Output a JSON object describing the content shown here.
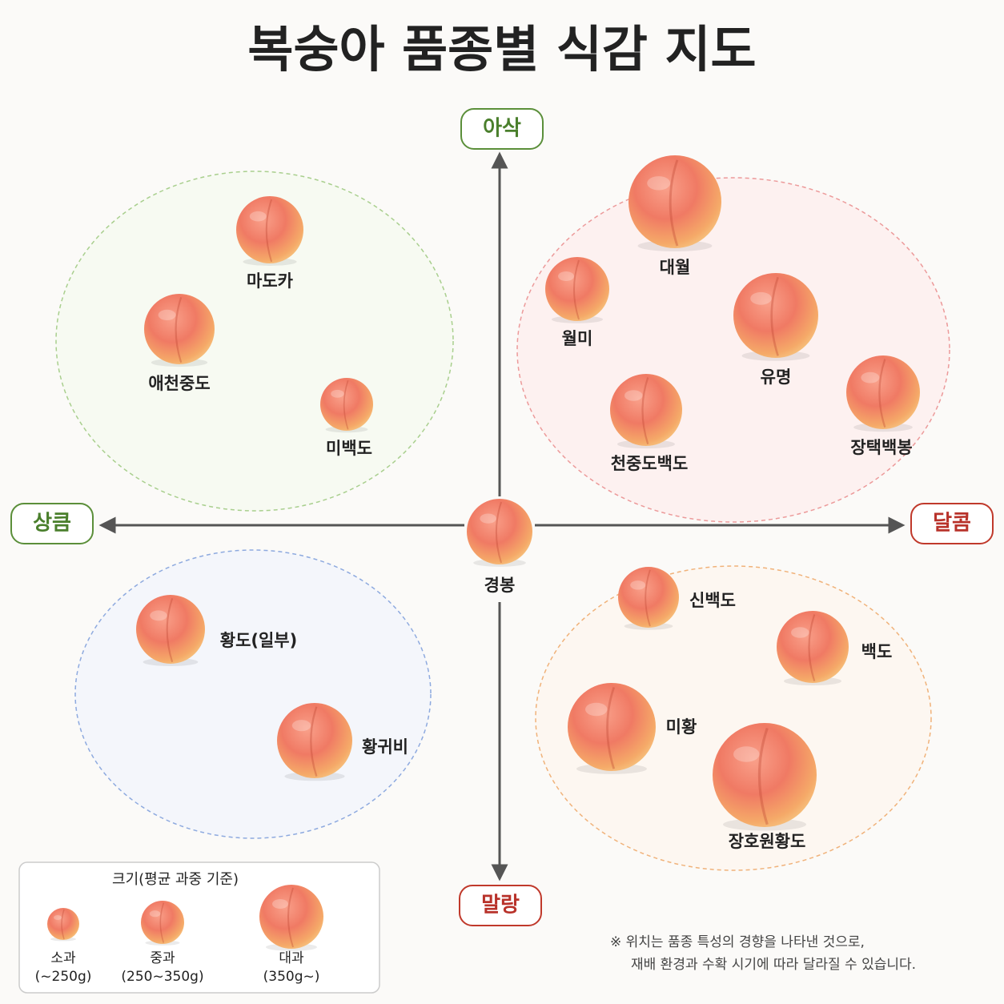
{
  "title": "복숭아 품종별 식감 지도",
  "axes": {
    "top": "아삭",
    "bottom": "말랑",
    "left": "상큼",
    "right": "달콤"
  },
  "varieties": [
    {
      "label": "마도카"
    },
    {
      "label": "애천중도"
    },
    {
      "label": "미백도"
    },
    {
      "label": "대월"
    },
    {
      "label": "월미"
    },
    {
      "label": "유명"
    },
    {
      "label": "천중도백도"
    },
    {
      "label": "장택백봉"
    },
    {
      "label": "경봉"
    },
    {
      "label": "신백도"
    },
    {
      "label": "백도"
    },
    {
      "label": "미황"
    },
    {
      "label": "장호원황도"
    },
    {
      "label": "황도(일부)"
    },
    {
      "label": "황귀비"
    }
  ],
  "legend": {
    "title": "크기(평균 과중 기준)",
    "items": [
      {
        "name": "소과",
        "range": "(~250g)"
      },
      {
        "name": "중과",
        "range": "(250~350g)"
      },
      {
        "name": "대과",
        "range": "(350g~)"
      }
    ]
  },
  "note": [
    "※ 위치는 품종 특성의 경향을 나타낸 것으로,",
    "재배 환경과 수확 시기에 따라 달라질 수 있습니다."
  ]
}
